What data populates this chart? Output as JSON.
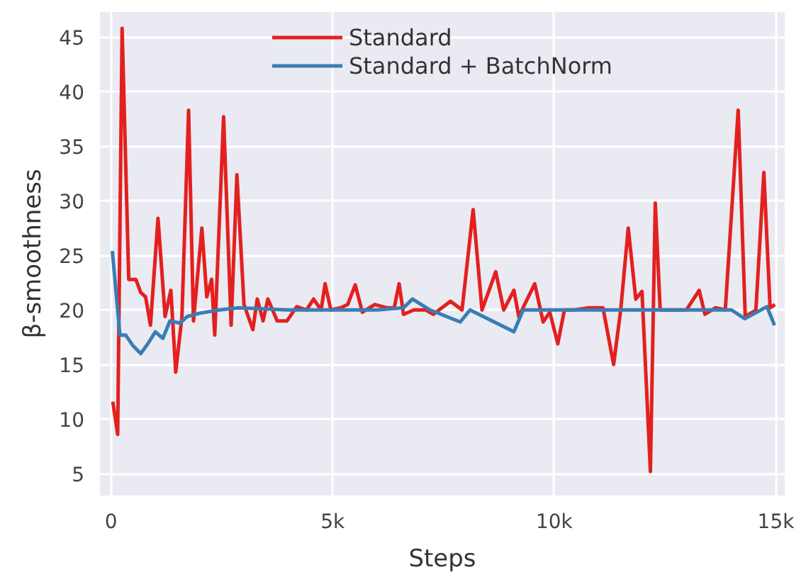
{
  "chart_data": {
    "type": "line",
    "xlabel": "Steps",
    "ylabel": "β-smoothness",
    "xlim": [
      -250,
      15200
    ],
    "ylim": [
      3,
      47.3
    ],
    "xticks": [
      0,
      {
        "value": 5000,
        "label": "5k"
      },
      {
        "value": 10000,
        "label": "10k"
      },
      {
        "value": 15000,
        "label": "15k"
      }
    ],
    "yticks": [
      5,
      10,
      15,
      20,
      25,
      30,
      35,
      40,
      45
    ],
    "grid": true,
    "legend": "top",
    "line_style": "solid",
    "marker": "none",
    "series": [
      {
        "name": "Standard",
        "color": "#e3201f",
        "x": [
          40,
          150,
          250,
          400,
          560,
          670,
          780,
          890,
          1060,
          1220,
          1350,
          1460,
          1600,
          1750,
          1860,
          2050,
          2160,
          2270,
          2340,
          2540,
          2710,
          2840,
          3000,
          3200,
          3300,
          3430,
          3540,
          3750,
          3970,
          4190,
          4410,
          4570,
          4740,
          4830,
          4960,
          5180,
          5340,
          5510,
          5670,
          5950,
          6220,
          6390,
          6500,
          6600,
          6830,
          7100,
          7270,
          7660,
          7920,
          8170,
          8370,
          8680,
          8860,
          9090,
          9200,
          9560,
          9750,
          9900,
          10080,
          10230,
          10450,
          10780,
          11100,
          11340,
          11500,
          11670,
          11840,
          11980,
          12170,
          12280,
          12390,
          12980,
          13270,
          13400,
          13640,
          13860,
          14150,
          14310,
          14550,
          14730,
          14870,
          14980
        ],
        "values": [
          11.6,
          8.6,
          45.8,
          22.8,
          22.8,
          21.6,
          21.2,
          18.6,
          28.4,
          19.4,
          21.8,
          14.3,
          19.4,
          38.3,
          19.0,
          27.5,
          21.2,
          22.8,
          17.7,
          37.7,
          18.6,
          32.4,
          20.5,
          18.2,
          21.0,
          19.0,
          21.0,
          19.0,
          19.0,
          20.3,
          20.0,
          21.0,
          20.0,
          22.4,
          20.0,
          20.2,
          20.5,
          22.3,
          19.8,
          20.5,
          20.2,
          20.2,
          22.4,
          19.6,
          20.0,
          20.0,
          19.6,
          20.8,
          20.0,
          29.2,
          20.0,
          23.5,
          20.0,
          21.8,
          19.4,
          22.4,
          18.9,
          19.8,
          16.9,
          20.0,
          20.0,
          20.2,
          20.2,
          15.0,
          20.0,
          27.5,
          21.0,
          21.7,
          5.2,
          29.8,
          20.0,
          20.0,
          21.8,
          19.6,
          20.2,
          20.0,
          38.3,
          19.4,
          20.0,
          32.6,
          20.2,
          20.5
        ]
      },
      {
        "name": "Standard + BatchNorm",
        "color": "#3a7db5",
        "x": [
          30,
          200,
          330,
          500,
          670,
          830,
          1000,
          1170,
          1330,
          1550,
          1720,
          2000,
          2440,
          2880,
          4000,
          5000,
          6000,
          6600,
          6800,
          7200,
          7880,
          8100,
          9090,
          9300,
          10000,
          11000,
          12000,
          13000,
          14000,
          14300,
          14800,
          14970
        ],
        "values": [
          25.4,
          17.7,
          17.7,
          16.7,
          16.0,
          16.9,
          18.0,
          17.4,
          19.0,
          18.8,
          19.4,
          19.7,
          20.0,
          20.2,
          20.0,
          20.0,
          20.0,
          20.2,
          21.0,
          20.0,
          18.9,
          20.0,
          18.0,
          20.0,
          20.0,
          20.0,
          20.0,
          20.0,
          20.0,
          19.2,
          20.3,
          18.6
        ]
      }
    ]
  }
}
